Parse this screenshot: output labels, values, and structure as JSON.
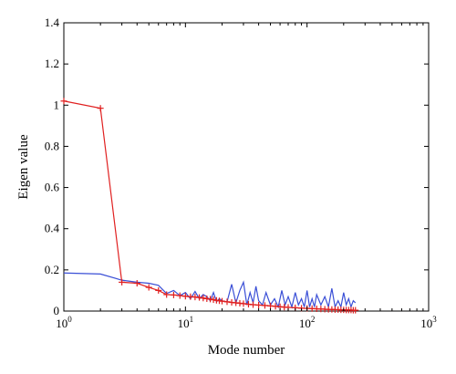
{
  "chart_data": {
    "type": "line",
    "title": "",
    "xlabel": "Mode number",
    "ylabel": "Eigen value",
    "xscale": "log",
    "xlim": [
      1,
      1000
    ],
    "ylim": [
      0,
      1.4
    ],
    "grid": false,
    "legend": "none",
    "x_ticks": [
      {
        "base": "10",
        "exp": "0",
        "value": 1
      },
      {
        "base": "10",
        "exp": "1",
        "value": 10
      },
      {
        "base": "10",
        "exp": "2",
        "value": 100
      },
      {
        "base": "10",
        "exp": "3",
        "value": 1000
      }
    ],
    "y_ticks": [
      "0",
      "0.2",
      "0.4",
      "0.6",
      "0.8",
      "1",
      "1.2",
      "1.4"
    ],
    "series": [
      {
        "color": "#3a4fd6",
        "marker": "none",
        "x": [
          1,
          2,
          3,
          4,
          5,
          6,
          7,
          8,
          9,
          10,
          11,
          12,
          13,
          14,
          15,
          16,
          17,
          18,
          19,
          20,
          22,
          24,
          26,
          28,
          30,
          32,
          34,
          36,
          38,
          40,
          43,
          46,
          50,
          54,
          58,
          62,
          66,
          70,
          75,
          80,
          85,
          90,
          95,
          100,
          105,
          110,
          115,
          120,
          130,
          140,
          150,
          160,
          170,
          180,
          190,
          200,
          210,
          220,
          230,
          240,
          250
        ],
        "y": [
          0.185,
          0.18,
          0.15,
          0.14,
          0.135,
          0.125,
          0.085,
          0.1,
          0.075,
          0.09,
          0.06,
          0.095,
          0.06,
          0.08,
          0.07,
          0.05,
          0.09,
          0.045,
          0.06,
          0.05,
          0.045,
          0.13,
          0.04,
          0.1,
          0.14,
          0.03,
          0.09,
          0.04,
          0.12,
          0.05,
          0.03,
          0.09,
          0.03,
          0.06,
          0.02,
          0.1,
          0.03,
          0.07,
          0.02,
          0.09,
          0.03,
          0.06,
          0.02,
          0.1,
          0.02,
          0.06,
          0.02,
          0.08,
          0.03,
          0.07,
          0.02,
          0.11,
          0.02,
          0.05,
          0.02,
          0.09,
          0.03,
          0.06,
          0.02,
          0.05,
          0.04
        ]
      },
      {
        "color": "#e02020",
        "marker": "+",
        "x": [
          1,
          2,
          3,
          4,
          5,
          6,
          7,
          8,
          9,
          10,
          11,
          12,
          13,
          14,
          15,
          16,
          17,
          18,
          19,
          20,
          22,
          24,
          26,
          28,
          30,
          33,
          36,
          40,
          45,
          50,
          55,
          60,
          65,
          70,
          80,
          90,
          100,
          110,
          120,
          130,
          140,
          150,
          160,
          170,
          180,
          190,
          200,
          210,
          220,
          230,
          240,
          250
        ],
        "y": [
          1.02,
          0.985,
          0.14,
          0.135,
          0.115,
          0.1,
          0.08,
          0.078,
          0.075,
          0.072,
          0.07,
          0.068,
          0.066,
          0.063,
          0.06,
          0.058,
          0.055,
          0.052,
          0.05,
          0.048,
          0.045,
          0.042,
          0.04,
          0.038,
          0.036,
          0.033,
          0.031,
          0.029,
          0.027,
          0.025,
          0.023,
          0.021,
          0.019,
          0.018,
          0.016,
          0.014,
          0.013,
          0.012,
          0.011,
          0.01,
          0.009,
          0.008,
          0.008,
          0.007,
          0.007,
          0.006,
          0.006,
          0.005,
          0.005,
          0.005,
          0.004,
          0.004
        ]
      }
    ]
  }
}
